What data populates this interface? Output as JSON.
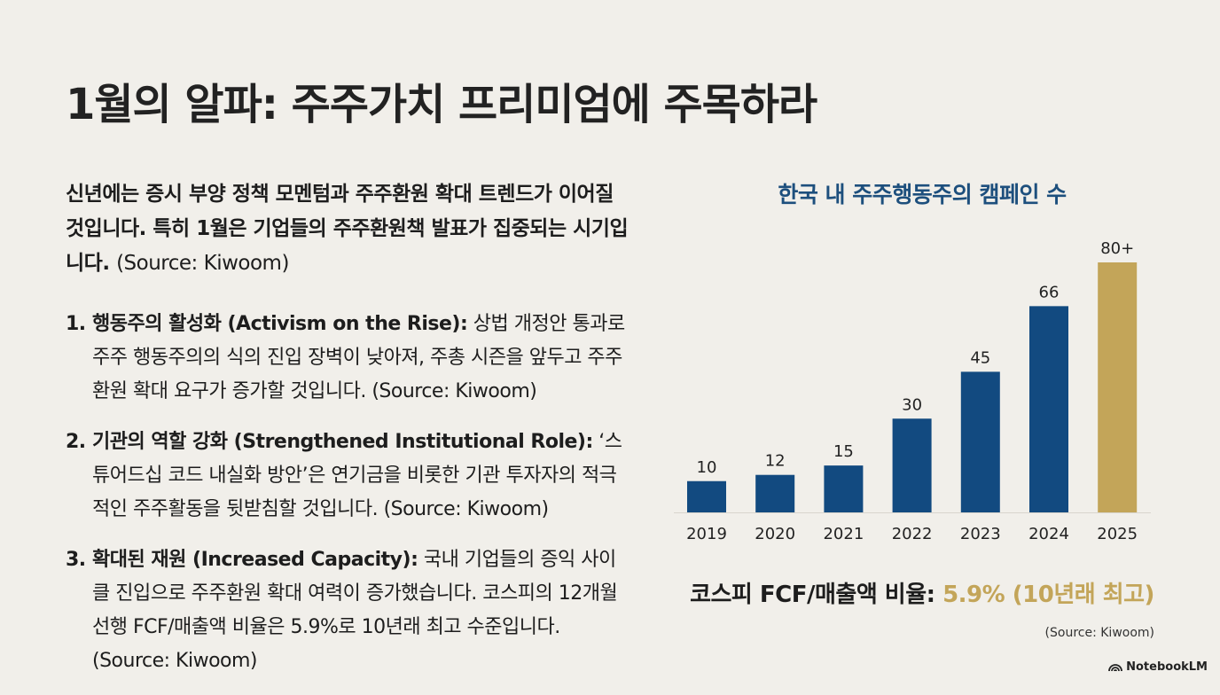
{
  "title": "1월의 알파: 주주가치 프리미엄에 주목하라",
  "intro": {
    "text": "신년에는 증시 부양 정책 모멘텀과 주주환원 확대 트렌드가 이어질 것입니다. 특히 1월은 기업들의 주주환원책 발표가 집중되는 시기입니다.",
    "source": "(Source: Kiwoom)"
  },
  "items": [
    {
      "num": "1.",
      "heading": "행동주의 활성화 (Activism on the Rise):",
      "body": "상법 개정안 통과로 주주 행동주의의 식의 진입 장벽이 낮아져, 주총 시즌을 앞두고 주주환원 확대 요구가 증가할 것입니다. (Source: Kiwoom)"
    },
    {
      "num": "2.",
      "heading": "기관의 역할 강화 (Strengthened Institutional Role):",
      "body": "‘스튜어드십 코드 내실화 방안’은 연기금을 비롯한 기관 투자자의 적극적인 주주활동을 뒷받침할 것입니다. (Source: Kiwoom)"
    },
    {
      "num": "3.",
      "heading": "확대된 재원 (Increased Capacity):",
      "body": "국내 기업들의 증익 사이클 진입으로 주주환원 확대 여력이 증가했습니다. 코스피의 12개월 선행 FCF/매출액 비율은 5.9%로 10년래 최고 수준입니다. (Source: Kiwoom)"
    }
  ],
  "chart_data": {
    "type": "bar",
    "title": "한국 내 주주행동주의 캠페인 수",
    "categories": [
      "2019",
      "2020",
      "2021",
      "2022",
      "2023",
      "2024",
      "2025"
    ],
    "values": [
      10,
      12,
      15,
      30,
      45,
      66,
      80
    ],
    "value_labels": [
      "10",
      "12",
      "15",
      "30",
      "45",
      "66",
      "80+"
    ],
    "ylim": [
      0,
      80
    ],
    "grid": false,
    "colors": [
      "#124a80",
      "#124a80",
      "#124a80",
      "#124a80",
      "#124a80",
      "#124a80",
      "#c3a559"
    ]
  },
  "kospi": {
    "label": "코스피 FCF/매출액 비율:",
    "value": "5.9% (10년래 최고)"
  },
  "chart_source": "(Source: Kiwoom)",
  "brand": "NotebookLM",
  "colors": {
    "navy": "#124a80",
    "gold": "#c3a559",
    "title_blue": "#1d4f7d",
    "background": "#f1efea"
  }
}
